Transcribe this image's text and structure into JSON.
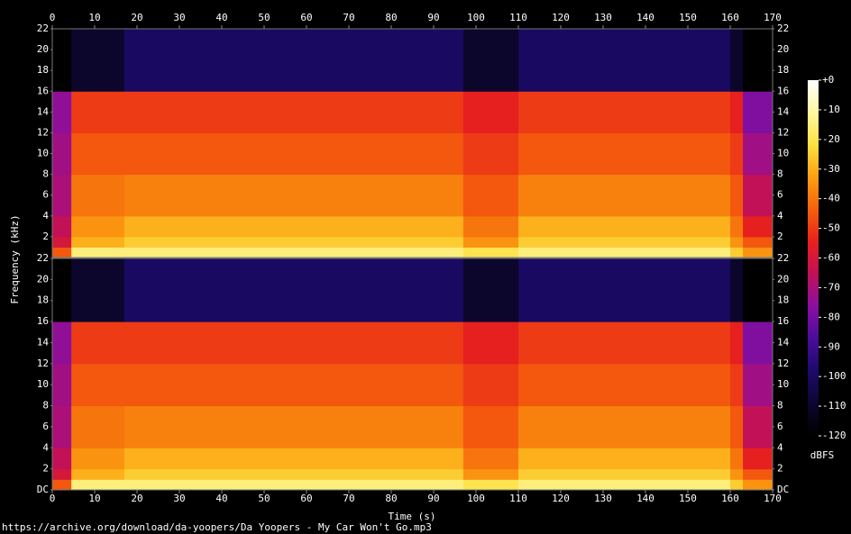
{
  "chart_data": {
    "type": "spectrogram",
    "xlabel": "Time (s)",
    "ylabel": "Frequency (kHz)",
    "footer": "https://archive.org/download/da-yoopers/Da Yoopers - My Car Won't Go.mp3",
    "xlim": [
      0,
      170
    ],
    "xticks": [
      0,
      10,
      20,
      30,
      40,
      50,
      60,
      70,
      80,
      90,
      100,
      110,
      120,
      130,
      140,
      150,
      160,
      170
    ],
    "ylim": [
      0,
      22
    ],
    "x_edges": [
      0,
      4.5,
      17,
      97,
      110,
      160,
      163,
      170
    ],
    "y_edges": [
      0,
      1,
      2,
      4,
      8,
      12,
      16,
      22
    ],
    "channels": [
      {
        "yticks": [
          2,
          4,
          6,
          8,
          10,
          12,
          14,
          16,
          18,
          20,
          22
        ],
        "values": [
          [
            -45,
            -15,
            -15,
            -20,
            -15,
            -25,
            -35
          ],
          [
            -60,
            -30,
            -25,
            -35,
            -25,
            -35,
            -45
          ],
          [
            -65,
            -35,
            -30,
            -40,
            -30,
            -40,
            -55
          ],
          [
            -70,
            -40,
            -38,
            -45,
            -38,
            -45,
            -65
          ],
          [
            -72,
            -45,
            -45,
            -50,
            -45,
            -50,
            -72
          ],
          [
            -75,
            -50,
            -50,
            -55,
            -50,
            -55,
            -78
          ],
          [
            -120,
            -110,
            -100,
            -110,
            -100,
            -110,
            -120
          ]
        ]
      },
      {
        "yticks": [
          {
            "value": 0,
            "label": "DC"
          },
          2,
          4,
          6,
          8,
          10,
          12,
          14,
          16,
          18,
          20,
          22
        ],
        "values": [
          [
            -45,
            -15,
            -15,
            -20,
            -15,
            -25,
            -35
          ],
          [
            -60,
            -30,
            -25,
            -35,
            -25,
            -35,
            -45
          ],
          [
            -65,
            -35,
            -30,
            -40,
            -30,
            -40,
            -55
          ],
          [
            -70,
            -40,
            -38,
            -45,
            -38,
            -45,
            -65
          ],
          [
            -72,
            -45,
            -45,
            -50,
            -45,
            -50,
            -72
          ],
          [
            -75,
            -50,
            -50,
            -55,
            -50,
            -55,
            -78
          ],
          [
            -120,
            -110,
            -100,
            -110,
            -100,
            -110,
            -120
          ]
        ]
      }
    ],
    "zlabel": "dBFS",
    "zlim": [
      -120,
      0
    ],
    "zticks": [
      {
        "value": 0,
        "label": "+0"
      },
      -10,
      -20,
      -30,
      -40,
      -50,
      -60,
      -70,
      -80,
      -90,
      -100,
      -110,
      -120
    ],
    "colormap": [
      "#000000",
      "#0d0630",
      "#1c0a6a",
      "#4a0d9a",
      "#8a0fa0",
      "#c0105a",
      "#e8201c",
      "#f5600c",
      "#fba010",
      "#fde040",
      "#fff8a0",
      "#ffffff"
    ]
  }
}
